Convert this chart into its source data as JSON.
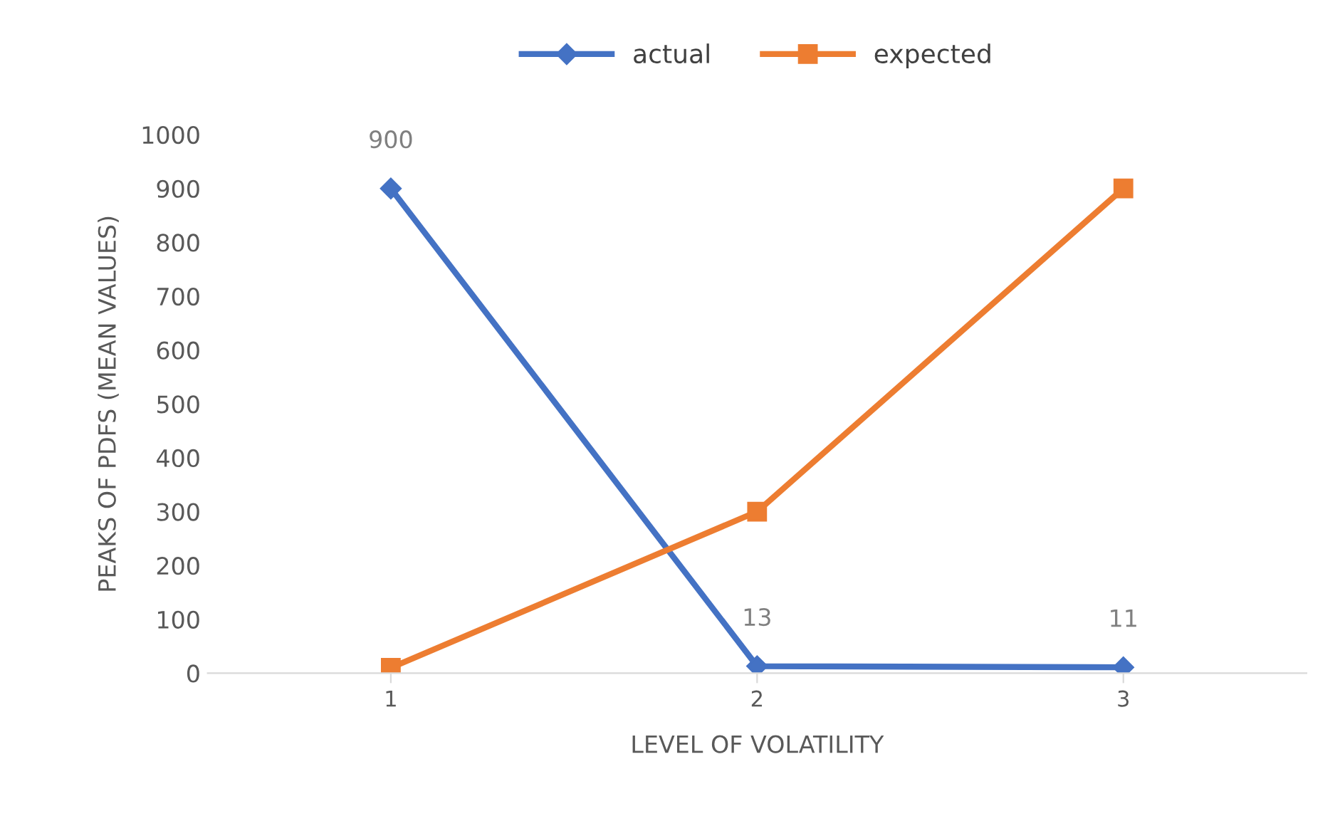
{
  "chart_data": {
    "type": "line",
    "xlabel": "LEVEL OF VOLATILITY",
    "ylabel": "PEAKS OF PDFS (MEAN VALUES)",
    "categories": [
      "1",
      "2",
      "3"
    ],
    "series": [
      {
        "name": "actual",
        "color": "#4472c4",
        "marker": "diamond",
        "values": [
          900,
          13,
          11
        ],
        "value_labels": [
          "900",
          "13",
          "11"
        ]
      },
      {
        "name": "expected",
        "color": "#ed7d31",
        "marker": "square",
        "values": [
          10,
          300,
          900
        ]
      }
    ],
    "ylim": [
      0,
      1000
    ],
    "yticks": [
      0,
      100,
      200,
      300,
      400,
      500,
      600,
      700,
      800,
      900,
      1000
    ],
    "grid": false,
    "legend": "top",
    "line_style": "solid"
  }
}
